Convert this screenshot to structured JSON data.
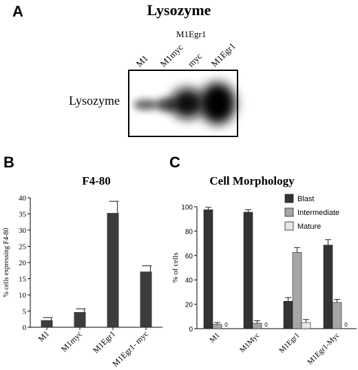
{
  "panel_a": {
    "letter": "A",
    "title": "Lysozyme",
    "group_label": "M1Egr1",
    "lanes": [
      "M1",
      "M1myc",
      "myc",
      "M1Egr1"
    ],
    "row_label": "Lysozyme"
  },
  "panel_b": {
    "letter": "B"
  },
  "panel_c": {
    "letter": "C"
  },
  "chart_data": [
    {
      "type": "bar",
      "title": "F4-80",
      "xlabel": "",
      "ylabel": "% cells expressing F4-80",
      "categories": [
        "M1",
        "M1myc",
        "M1Egr1",
        "M1Egr1- myc"
      ],
      "values": [
        2.2,
        4.7,
        35.3,
        17.2
      ],
      "errors": [
        0.8,
        1.0,
        3.6,
        1.8
      ],
      "ylim": [
        0,
        40
      ],
      "yticks": [
        0,
        5,
        10,
        15,
        20,
        25,
        30,
        35,
        40
      ],
      "grid": false,
      "color": "#3c3c3c"
    },
    {
      "type": "bar",
      "title": "Cell Morphology",
      "xlabel": "",
      "ylabel": "% of cells",
      "categories": [
        "M1",
        "M1Myc",
        "M1Egr1",
        "M1Egr1-Myc"
      ],
      "series": [
        {
          "name": "Blast",
          "values": [
            97.5,
            95.5,
            22.5,
            68.5
          ],
          "errors": [
            2,
            2,
            3,
            4.5
          ],
          "color": "#333333"
        },
        {
          "name": "Intermediate",
          "values": [
            3.5,
            4.5,
            62.5,
            21.5
          ],
          "errors": [
            1.5,
            2,
            4,
            2.5
          ],
          "color": "#a6a6a6"
        },
        {
          "name": "Mature",
          "values": [
            0,
            0,
            5,
            0
          ],
          "errors": [
            0,
            0,
            2.5,
            0
          ],
          "color": "#e6e6e6"
        }
      ],
      "zero_label": "0",
      "ylim": [
        0,
        100
      ],
      "yticks": [
        0,
        20,
        40,
        60,
        80,
        100
      ],
      "grid": false,
      "legend": "top-right"
    }
  ]
}
